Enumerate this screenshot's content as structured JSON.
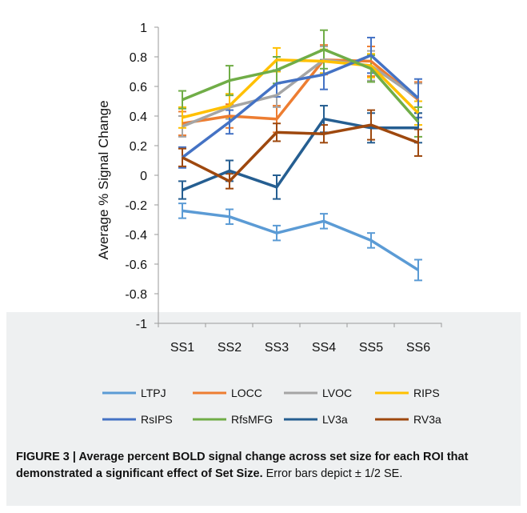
{
  "chart_data": {
    "type": "line",
    "ylabel": "Average % Signal Change",
    "xlabel": "",
    "ylim": [
      -1,
      1
    ],
    "yticks": [
      -1,
      -0.8,
      -0.6,
      -0.4,
      -0.2,
      0,
      0.2,
      0.4,
      0.6,
      0.8,
      1
    ],
    "ytick_labels": [
      "-1",
      "-0.8",
      "-0.6",
      "-0.4",
      "-0.2",
      "0",
      "0.2",
      "0.4",
      "0.6",
      "0.8",
      "1"
    ],
    "categories": [
      "SS1",
      "SS2",
      "SS3",
      "SS4",
      "SS5",
      "SS6"
    ],
    "grid": false,
    "legend_position": "bottom",
    "series": [
      {
        "name": "LTPJ",
        "color": "#5b9bd5",
        "values": [
          -0.24,
          -0.28,
          -0.39,
          -0.31,
          -0.44,
          -0.64
        ],
        "err": [
          0.05,
          0.05,
          0.05,
          0.05,
          0.05,
          0.07
        ]
      },
      {
        "name": "LOCC",
        "color": "#ed7d31",
        "values": [
          0.35,
          0.4,
          0.38,
          0.78,
          0.77,
          0.51
        ],
        "err": [
          0.08,
          0.08,
          0.09,
          0.1,
          0.1,
          0.12
        ]
      },
      {
        "name": "LVOC",
        "color": "#a5a5a5",
        "values": [
          0.33,
          0.46,
          0.54,
          0.78,
          0.74,
          0.52
        ],
        "err": [
          0.07,
          0.08,
          0.08,
          0.09,
          0.1,
          0.1
        ]
      },
      {
        "name": "RIPS",
        "color": "#ffc000",
        "values": [
          0.39,
          0.47,
          0.78,
          0.77,
          0.74,
          0.42
        ],
        "err": [
          0.07,
          0.08,
          0.08,
          0.08,
          0.08,
          0.08
        ]
      },
      {
        "name": "RsIPS",
        "color": "#4472c4",
        "values": [
          0.12,
          0.36,
          0.62,
          0.68,
          0.81,
          0.52
        ],
        "err": [
          0.07,
          0.08,
          0.09,
          0.1,
          0.12,
          0.13
        ]
      },
      {
        "name": "RfsMFG",
        "color": "#70ad47",
        "values": [
          0.51,
          0.64,
          0.71,
          0.85,
          0.72,
          0.36
        ],
        "err": [
          0.06,
          0.1,
          0.09,
          0.13,
          0.09,
          0.1
        ]
      },
      {
        "name": "LV3a",
        "color": "#255e91",
        "values": [
          -0.1,
          0.03,
          -0.08,
          0.38,
          0.32,
          0.32
        ],
        "err": [
          0.06,
          0.07,
          0.08,
          0.09,
          0.1,
          0.1
        ]
      },
      {
        "name": "RV3a",
        "color": "#9e480e",
        "values": [
          0.12,
          -0.04,
          0.29,
          0.28,
          0.34,
          0.22
        ],
        "err": [
          0.06,
          0.05,
          0.06,
          0.06,
          0.1,
          0.09
        ]
      }
    ]
  },
  "caption": {
    "bold": "FIGURE 3 | Average percent BOLD signal change across set size for each ROI that demonstrated a significant effect of Set Size.",
    "normal": " Error bars depict ± 1/2 SE."
  }
}
